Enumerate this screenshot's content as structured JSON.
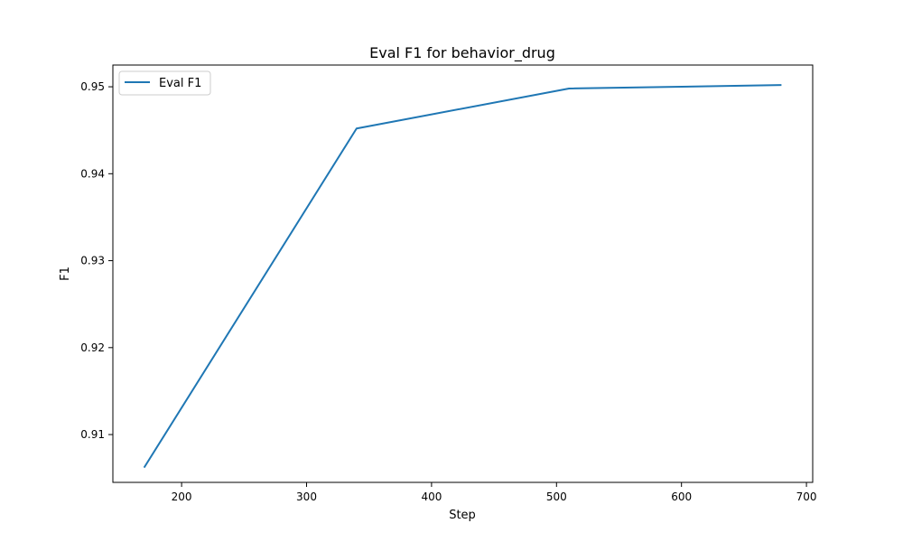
{
  "chart_data": {
    "type": "line",
    "title": "Eval F1 for behavior_drug",
    "xlabel": "Step",
    "ylabel": "F1",
    "xlim": [
      145,
      705
    ],
    "ylim": [
      0.9045,
      0.9525
    ],
    "xticks": [
      200,
      300,
      400,
      500,
      600,
      700
    ],
    "yticks": [
      0.91,
      0.92,
      0.93,
      0.94,
      0.95
    ],
    "grid": false,
    "legend_position": "upper-left",
    "series": [
      {
        "name": "Eval F1",
        "color": "#1f77b4",
        "x": [
          170,
          340,
          510,
          680
        ],
        "y": [
          0.9062,
          0.9452,
          0.9498,
          0.9502
        ]
      }
    ]
  }
}
